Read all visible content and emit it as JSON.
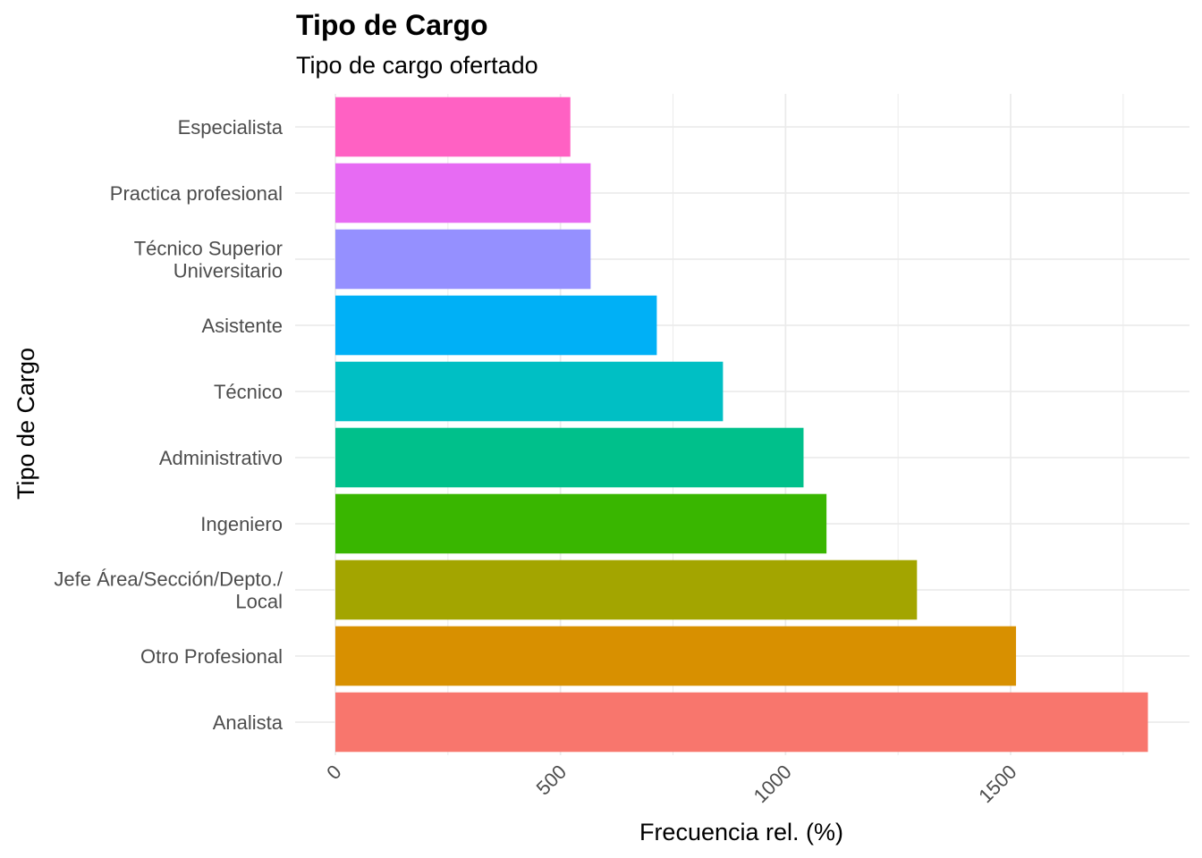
{
  "chart_data": {
    "type": "bar",
    "orientation": "horizontal",
    "title": "Tipo de Cargo",
    "subtitle": "Tipo de cargo ofertado",
    "xlabel": "Frecuencia rel. (%)",
    "ylabel": "Tipo de Cargo",
    "xlim": [
      0,
      1900
    ],
    "xticks": [
      0,
      500,
      1000,
      1500
    ],
    "grid": true,
    "legend": "none",
    "categories": [
      [
        "Especialista"
      ],
      [
        "Practica profesional"
      ],
      [
        "Técnico Superior",
        "Universitario"
      ],
      [
        "Asistente"
      ],
      [
        "Técnico"
      ],
      [
        "Administrativo"
      ],
      [
        "Ingeniero"
      ],
      [
        "Jefe Área/Sección/Depto./",
        "Local"
      ],
      [
        "Otro Profesional"
      ],
      [
        "Analista"
      ]
    ],
    "values": [
      522,
      567,
      567,
      714,
      861,
      1040,
      1091,
      1292,
      1512,
      1805
    ],
    "colors": [
      "#FF61C3",
      "#E76BF3",
      "#9590FF",
      "#00B0F6",
      "#00BFC4",
      "#00C08B",
      "#39B600",
      "#A3A500",
      "#D89000",
      "#F8766D"
    ]
  }
}
